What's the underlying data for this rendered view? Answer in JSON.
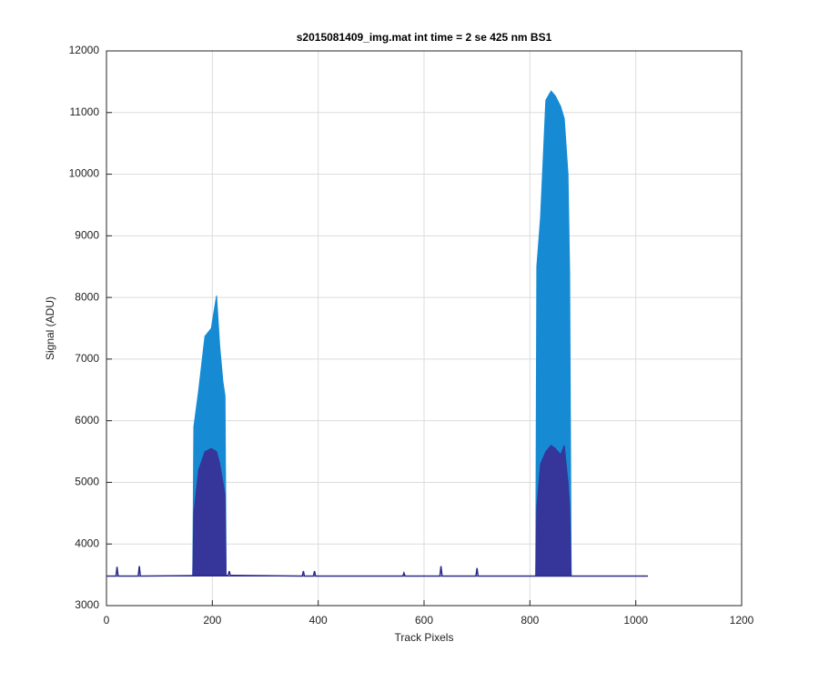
{
  "chart_data": {
    "type": "line",
    "title": "s2015081409_img.mat int time = 2 se  425 nm BS1",
    "x_label": "Track Pixels",
    "y_label": "Signal (ADU)",
    "xlim": [
      0,
      1200
    ],
    "xticks": [
      0,
      200,
      400,
      600,
      800,
      1000,
      1200
    ],
    "ylim": [
      3000,
      12000
    ],
    "yticks": [
      3000,
      4000,
      5000,
      6000,
      7000,
      8000,
      9000,
      10000,
      11000,
      12000
    ],
    "grid": true,
    "series": [
      {
        "type": "area",
        "color": "#168bd3",
        "x": [
          0,
          163,
          165,
          174,
          186,
          198,
          208,
          214,
          220,
          224,
          226,
          811,
          813,
          820,
          830,
          840,
          848,
          858,
          865,
          872,
          875,
          878,
          1023
        ],
        "values": [
          3480,
          3480,
          5900,
          6480,
          7370,
          7500,
          8030,
          7200,
          6630,
          6400,
          3480,
          3480,
          8500,
          9300,
          11200,
          11350,
          11270,
          11100,
          10900,
          10000,
          8400,
          3480,
          3480
        ]
      },
      {
        "type": "area",
        "color": "#35359a",
        "x": [
          0,
          163,
          165,
          174,
          186,
          198,
          208,
          214,
          220,
          224,
          226,
          811,
          813,
          820,
          830,
          840,
          848,
          858,
          865,
          872,
          875,
          878,
          1023
        ],
        "values": [
          3480,
          3480,
          4500,
          5200,
          5500,
          5550,
          5500,
          5300,
          5000,
          4800,
          3480,
          3480,
          4600,
          5300,
          5500,
          5600,
          5550,
          5450,
          5600,
          5000,
          4600,
          3480,
          3480
        ]
      },
      {
        "type": "line",
        "color": "#2d2a8c",
        "x": [
          0,
          18,
          20,
          22,
          60,
          62,
          64,
          225,
          230,
          232,
          234,
          370,
          372,
          374,
          391,
          393,
          395,
          560,
          562,
          564,
          630,
          632,
          634,
          698,
          700,
          702,
          1023
        ],
        "values": [
          3480,
          3480,
          3630,
          3480,
          3480,
          3640,
          3480,
          3490,
          3490,
          3560,
          3490,
          3480,
          3560,
          3480,
          3480,
          3560,
          3480,
          3480,
          3530,
          3480,
          3480,
          3640,
          3480,
          3480,
          3610,
          3480,
          3480
        ]
      }
    ]
  }
}
